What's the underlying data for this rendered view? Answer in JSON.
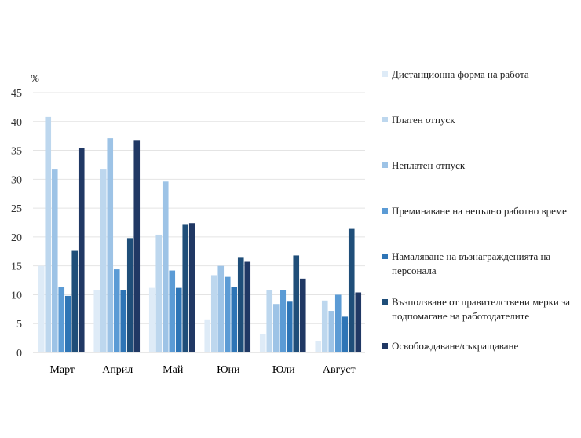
{
  "chart_data": {
    "type": "bar",
    "ylabel": "%",
    "ylim": [
      0,
      45
    ],
    "yticks": [
      0,
      5,
      10,
      15,
      20,
      25,
      30,
      35,
      40,
      45
    ],
    "grid": true,
    "legend_position": "right",
    "categories": [
      "Март",
      "Април",
      "Май",
      "Юни",
      "Юли",
      "Август"
    ],
    "series": [
      {
        "name": "Дистанционна форма на работа",
        "color": "#deebf7",
        "values": [
          15.0,
          10.8,
          11.2,
          5.6,
          3.2,
          2.0
        ]
      },
      {
        "name": "Платен отпуск",
        "color": "#bdd7ee",
        "values": [
          40.8,
          31.8,
          20.4,
          13.4,
          10.8,
          9.0
        ]
      },
      {
        "name": "Неплатен отпуск",
        "color": "#9dc3e6",
        "values": [
          31.8,
          37.1,
          29.6,
          15.0,
          8.4,
          7.2
        ]
      },
      {
        "name": "Преминаване на непълно работно време",
        "color": "#5b9bd5",
        "values": [
          11.4,
          14.4,
          14.2,
          13.1,
          10.8,
          10.0
        ]
      },
      {
        "name": "Намаляване на възнагражденията на персонала",
        "color": "#2e75b6",
        "values": [
          9.8,
          10.8,
          11.2,
          11.4,
          8.8,
          6.2
        ]
      },
      {
        "name": "Възползване от правителствени мерки за подпомагане на работодателите",
        "color": "#1f4e79",
        "values": [
          17.6,
          19.8,
          22.1,
          16.4,
          16.8,
          21.4
        ]
      },
      {
        "name": "Освобождаване/съкращаване",
        "color": "#203864",
        "values": [
          35.4,
          36.8,
          22.4,
          15.7,
          12.8,
          10.4
        ]
      }
    ]
  }
}
